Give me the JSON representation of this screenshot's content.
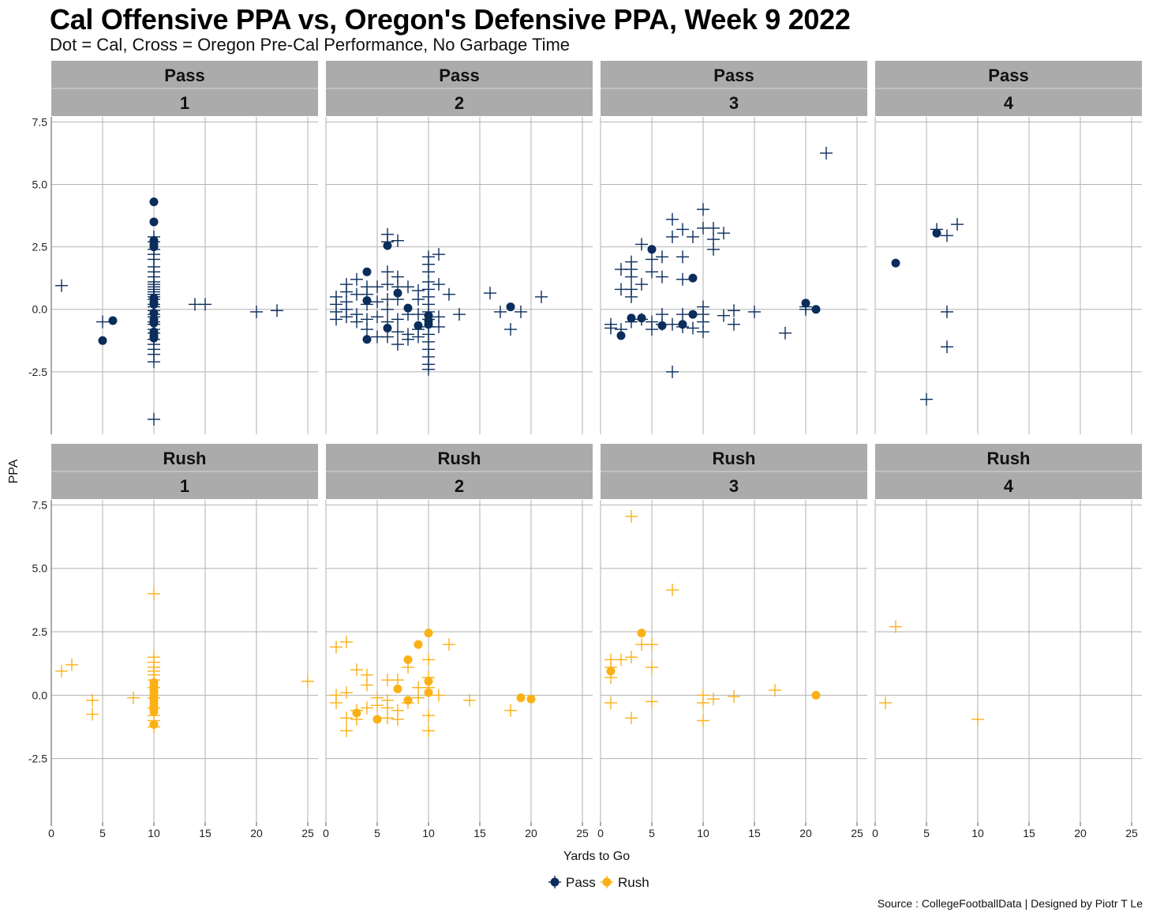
{
  "chart_data": {
    "type": "scatter",
    "title": "Cal Offensive PPA vs, Oregon's Defensive PPA, Week 9 2022",
    "subtitle": "Dot = Cal, Cross = Oregon Pre-Cal Performance, No Garbage Time",
    "caption": "Source : CollegeFootballData | Designed by Piotr T Le",
    "xlabel": "Yards to Go",
    "ylabel": "PPA",
    "xlim": [
      0,
      26
    ],
    "ylim": [
      -5,
      7.7
    ],
    "x_ticks": [
      0,
      5,
      10,
      15,
      20,
      25
    ],
    "y_ticks": [
      -2.5,
      0,
      2.5,
      5,
      7.5
    ],
    "x_tick_labels": [
      "0",
      "5",
      "10",
      "15",
      "20",
      "25"
    ],
    "y_tick_labels": [
      "-2.5",
      "0.0",
      "2.5",
      "5.0",
      "7.5"
    ],
    "facet_rows": [
      "Pass",
      "Rush"
    ],
    "facet_cols": [
      "1",
      "2",
      "3",
      "4"
    ],
    "colors": {
      "Pass": "#0b2d5b",
      "Rush": "#fbb116"
    },
    "legend": [
      {
        "name": "Pass",
        "color": "#0b2d5b"
      },
      {
        "name": "Rush",
        "color": "#fbb116"
      }
    ],
    "legend_position": "bottom",
    "marker_meaning": {
      "dot": "Cal",
      "cross": "Oregon Pre-Cal Performance"
    },
    "panels": [
      {
        "play": "Pass",
        "down": "1",
        "cal": [
          [
            10,
            4.3
          ],
          [
            10,
            3.5
          ],
          [
            10,
            2.75
          ],
          [
            10,
            2.6
          ],
          [
            10,
            2.5
          ],
          [
            10,
            0.45
          ],
          [
            10,
            0.3
          ],
          [
            10,
            0.2
          ],
          [
            10,
            -0.15
          ],
          [
            10,
            -0.4
          ],
          [
            10,
            -0.55
          ],
          [
            10,
            -0.9
          ],
          [
            10,
            -1.05
          ],
          [
            10,
            -1.15
          ],
          [
            5,
            -1.25
          ],
          [
            6,
            -0.45
          ]
        ],
        "oregon": [
          [
            1,
            0.95
          ],
          [
            5,
            -0.5
          ],
          [
            10,
            2.9
          ],
          [
            10,
            2.7
          ],
          [
            10,
            2.4
          ],
          [
            10,
            2.2
          ],
          [
            10,
            2.0
          ],
          [
            10,
            1.7
          ],
          [
            10,
            1.5
          ],
          [
            10,
            1.3
          ],
          [
            10,
            1.1
          ],
          [
            10,
            1.0
          ],
          [
            10,
            0.9
          ],
          [
            10,
            0.8
          ],
          [
            10,
            0.7
          ],
          [
            10,
            0.6
          ],
          [
            10,
            0.5
          ],
          [
            10,
            0.4
          ],
          [
            10,
            0.2
          ],
          [
            10,
            0.1
          ],
          [
            10,
            -0.05
          ],
          [
            10,
            -0.2
          ],
          [
            10,
            -0.3
          ],
          [
            10,
            -0.5
          ],
          [
            10,
            -0.6
          ],
          [
            10,
            -0.8
          ],
          [
            10,
            -0.95
          ],
          [
            10,
            -1.2
          ],
          [
            10,
            -1.4
          ],
          [
            10,
            -1.6
          ],
          [
            10,
            -1.8
          ],
          [
            10,
            -2.1
          ],
          [
            10,
            -4.4
          ],
          [
            14,
            0.2
          ],
          [
            15,
            0.2
          ],
          [
            20,
            -0.1
          ],
          [
            22,
            -0.05
          ]
        ]
      },
      {
        "play": "Pass",
        "down": "2",
        "cal": [
          [
            6,
            2.55
          ],
          [
            4,
            1.5
          ],
          [
            4,
            0.35
          ],
          [
            7,
            0.65
          ],
          [
            8,
            0.05
          ],
          [
            6,
            -0.75
          ],
          [
            4,
            -1.2
          ],
          [
            9,
            -0.65
          ],
          [
            10,
            -0.25
          ],
          [
            10,
            -0.45
          ],
          [
            10,
            -0.6
          ],
          [
            18,
            0.1
          ]
        ],
        "oregon": [
          [
            1,
            0.5
          ],
          [
            1,
            0.2
          ],
          [
            1,
            -0.1
          ],
          [
            1,
            -0.4
          ],
          [
            2,
            1.0
          ],
          [
            2,
            0.7
          ],
          [
            2,
            0.3
          ],
          [
            2,
            0.0
          ],
          [
            2,
            -0.3
          ],
          [
            3,
            1.2
          ],
          [
            3,
            0.6
          ],
          [
            3,
            -0.2
          ],
          [
            3,
            -0.5
          ],
          [
            4,
            0.9
          ],
          [
            4,
            0.6
          ],
          [
            4,
            0.2
          ],
          [
            4,
            -0.4
          ],
          [
            4,
            -0.8
          ],
          [
            5,
            0.9
          ],
          [
            5,
            0.3
          ],
          [
            5,
            -0.3
          ],
          [
            5,
            -1.1
          ],
          [
            6,
            3.0
          ],
          [
            6,
            2.7
          ],
          [
            6,
            1.5
          ],
          [
            6,
            1.0
          ],
          [
            6,
            0.4
          ],
          [
            6,
            0.0
          ],
          [
            6,
            -0.5
          ],
          [
            6,
            -1.1
          ],
          [
            7,
            2.75
          ],
          [
            7,
            1.3
          ],
          [
            7,
            0.9
          ],
          [
            7,
            0.4
          ],
          [
            7,
            -0.4
          ],
          [
            7,
            -0.9
          ],
          [
            7,
            -1.4
          ],
          [
            8,
            0.9
          ],
          [
            8,
            -0.2
          ],
          [
            8,
            -1.0
          ],
          [
            8,
            -1.2
          ],
          [
            9,
            0.75
          ],
          [
            9,
            0.4
          ],
          [
            9,
            -0.2
          ],
          [
            9,
            -0.8
          ],
          [
            9,
            -1.1
          ],
          [
            10,
            2.1
          ],
          [
            10,
            1.8
          ],
          [
            10,
            1.5
          ],
          [
            10,
            1.1
          ],
          [
            10,
            0.8
          ],
          [
            10,
            0.5
          ],
          [
            10,
            0.2
          ],
          [
            10,
            -0.1
          ],
          [
            10,
            -0.4
          ],
          [
            10,
            -0.7
          ],
          [
            10,
            -1.0
          ],
          [
            10,
            -1.3
          ],
          [
            10,
            -1.6
          ],
          [
            10,
            -1.9
          ],
          [
            10,
            -2.2
          ],
          [
            10,
            -2.4
          ],
          [
            11,
            2.2
          ],
          [
            11,
            1.0
          ],
          [
            11,
            -0.3
          ],
          [
            11,
            -0.7
          ],
          [
            12,
            0.6
          ],
          [
            13,
            -0.2
          ],
          [
            16,
            0.65
          ],
          [
            17,
            -0.1
          ],
          [
            18,
            -0.8
          ],
          [
            19,
            -0.1
          ],
          [
            21,
            0.5
          ]
        ]
      },
      {
        "play": "Pass",
        "down": "3",
        "cal": [
          [
            5,
            2.4
          ],
          [
            9,
            1.25
          ],
          [
            3,
            -0.35
          ],
          [
            4,
            -0.35
          ],
          [
            2,
            -1.05
          ],
          [
            6,
            -0.65
          ],
          [
            8,
            -0.6
          ],
          [
            9,
            -0.2
          ],
          [
            20,
            0.25
          ],
          [
            21,
            0.0
          ]
        ],
        "oregon": [
          [
            1,
            -0.6
          ],
          [
            1,
            -0.75
          ],
          [
            2,
            1.6
          ],
          [
            2,
            0.8
          ],
          [
            2,
            -0.8
          ],
          [
            3,
            1.9
          ],
          [
            3,
            1.6
          ],
          [
            3,
            1.3
          ],
          [
            3,
            0.8
          ],
          [
            3,
            0.5
          ],
          [
            3,
            -0.5
          ],
          [
            4,
            2.6
          ],
          [
            4,
            1.0
          ],
          [
            4,
            -0.4
          ],
          [
            5,
            2.0
          ],
          [
            5,
            1.5
          ],
          [
            5,
            -0.5
          ],
          [
            5,
            -0.8
          ],
          [
            6,
            2.1
          ],
          [
            6,
            1.3
          ],
          [
            6,
            -0.2
          ],
          [
            6,
            -0.6
          ],
          [
            7,
            3.6
          ],
          [
            7,
            2.9
          ],
          [
            7,
            -0.6
          ],
          [
            7,
            -2.5
          ],
          [
            8,
            3.2
          ],
          [
            8,
            2.1
          ],
          [
            8,
            1.2
          ],
          [
            8,
            -0.2
          ],
          [
            8,
            -0.7
          ],
          [
            9,
            2.9
          ],
          [
            9,
            -0.75
          ],
          [
            10,
            4.0
          ],
          [
            10,
            3.25
          ],
          [
            10,
            0.1
          ],
          [
            10,
            -0.2
          ],
          [
            10,
            -0.5
          ],
          [
            10,
            -0.9
          ],
          [
            11,
            3.25
          ],
          [
            11,
            2.8
          ],
          [
            11,
            2.4
          ],
          [
            12,
            3.05
          ],
          [
            12,
            -0.25
          ],
          [
            13,
            -0.05
          ],
          [
            13,
            -0.6
          ],
          [
            15,
            -0.1
          ],
          [
            18,
            -0.95
          ],
          [
            20,
            0.1
          ],
          [
            20,
            0.0
          ],
          [
            22,
            6.25
          ]
        ]
      },
      {
        "play": "Pass",
        "down": "4",
        "cal": [
          [
            2,
            1.85
          ],
          [
            6,
            3.05
          ]
        ],
        "oregon": [
          [
            6,
            3.2
          ],
          [
            7,
            2.95
          ],
          [
            8,
            3.4
          ],
          [
            7,
            -0.1
          ],
          [
            7,
            -1.5
          ],
          [
            5,
            -3.6
          ]
        ]
      },
      {
        "play": "Rush",
        "down": "1",
        "cal": [
          [
            10,
            0.5
          ],
          [
            10,
            0.35
          ],
          [
            10,
            0.2
          ],
          [
            10,
            0.1
          ],
          [
            10,
            0.0
          ],
          [
            10,
            -0.15
          ],
          [
            10,
            -0.3
          ],
          [
            10,
            -0.45
          ],
          [
            10,
            -0.55
          ],
          [
            10,
            -0.65
          ],
          [
            10,
            -1.15
          ]
        ],
        "oregon": [
          [
            1,
            0.95
          ],
          [
            2,
            1.2
          ],
          [
            4,
            -0.2
          ],
          [
            4,
            -0.75
          ],
          [
            8,
            -0.1
          ],
          [
            10,
            4.0
          ],
          [
            10,
            1.5
          ],
          [
            10,
            1.3
          ],
          [
            10,
            1.1
          ],
          [
            10,
            0.95
          ],
          [
            10,
            0.8
          ],
          [
            10,
            0.6
          ],
          [
            10,
            0.3
          ],
          [
            10,
            -0.1
          ],
          [
            10,
            -0.5
          ],
          [
            10,
            -0.8
          ],
          [
            10,
            -1.0
          ],
          [
            10,
            -1.25
          ],
          [
            25,
            0.55
          ]
        ]
      },
      {
        "play": "Rush",
        "down": "2",
        "cal": [
          [
            10,
            2.45
          ],
          [
            9,
            2.0
          ],
          [
            8,
            1.4
          ],
          [
            10,
            0.55
          ],
          [
            7,
            0.25
          ],
          [
            10,
            0.1
          ],
          [
            8,
            -0.2
          ],
          [
            3,
            -0.7
          ],
          [
            5,
            -0.95
          ],
          [
            19,
            -0.1
          ],
          [
            20,
            -0.15
          ]
        ],
        "oregon": [
          [
            1,
            1.9
          ],
          [
            1,
            0.0
          ],
          [
            1,
            -0.3
          ],
          [
            2,
            2.1
          ],
          [
            2,
            0.1
          ],
          [
            2,
            -0.9
          ],
          [
            2,
            -1.4
          ],
          [
            3,
            1.0
          ],
          [
            3,
            -0.6
          ],
          [
            3,
            -0.95
          ],
          [
            4,
            0.8
          ],
          [
            4,
            0.4
          ],
          [
            4,
            -0.5
          ],
          [
            5,
            -0.1
          ],
          [
            5,
            -0.4
          ],
          [
            6,
            0.6
          ],
          [
            6,
            -0.2
          ],
          [
            6,
            -0.5
          ],
          [
            6,
            -0.9
          ],
          [
            7,
            0.6
          ],
          [
            7,
            -0.6
          ],
          [
            7,
            -0.95
          ],
          [
            8,
            1.1
          ],
          [
            8,
            -0.3
          ],
          [
            9,
            0.3
          ],
          [
            9,
            -0.1
          ],
          [
            10,
            1.4
          ],
          [
            10,
            0.7
          ],
          [
            10,
            0.3
          ],
          [
            10,
            -0.8
          ],
          [
            10,
            -1.4
          ],
          [
            11,
            0.0
          ],
          [
            12,
            2.0
          ],
          [
            14,
            -0.2
          ],
          [
            18,
            -0.6
          ]
        ]
      },
      {
        "play": "Rush",
        "down": "3",
        "cal": [
          [
            4,
            2.45
          ],
          [
            1,
            0.95
          ],
          [
            21,
            0.0
          ]
        ],
        "oregon": [
          [
            1,
            1.4
          ],
          [
            1,
            1.1
          ],
          [
            1,
            0.7
          ],
          [
            1,
            -0.3
          ],
          [
            2,
            1.4
          ],
          [
            3,
            7.05
          ],
          [
            3,
            1.5
          ],
          [
            3,
            -0.9
          ],
          [
            4,
            2.0
          ],
          [
            5,
            2.0
          ],
          [
            5,
            1.1
          ],
          [
            5,
            -0.25
          ],
          [
            7,
            4.15
          ],
          [
            10,
            0.0
          ],
          [
            10,
            -0.3
          ],
          [
            10,
            -1.0
          ],
          [
            11,
            -0.15
          ],
          [
            13,
            -0.05
          ],
          [
            17,
            0.2
          ]
        ]
      },
      {
        "play": "Rush",
        "down": "4",
        "cal": [],
        "oregon": [
          [
            1,
            -0.3
          ],
          [
            2,
            2.7
          ],
          [
            10,
            -0.95
          ]
        ]
      }
    ]
  }
}
